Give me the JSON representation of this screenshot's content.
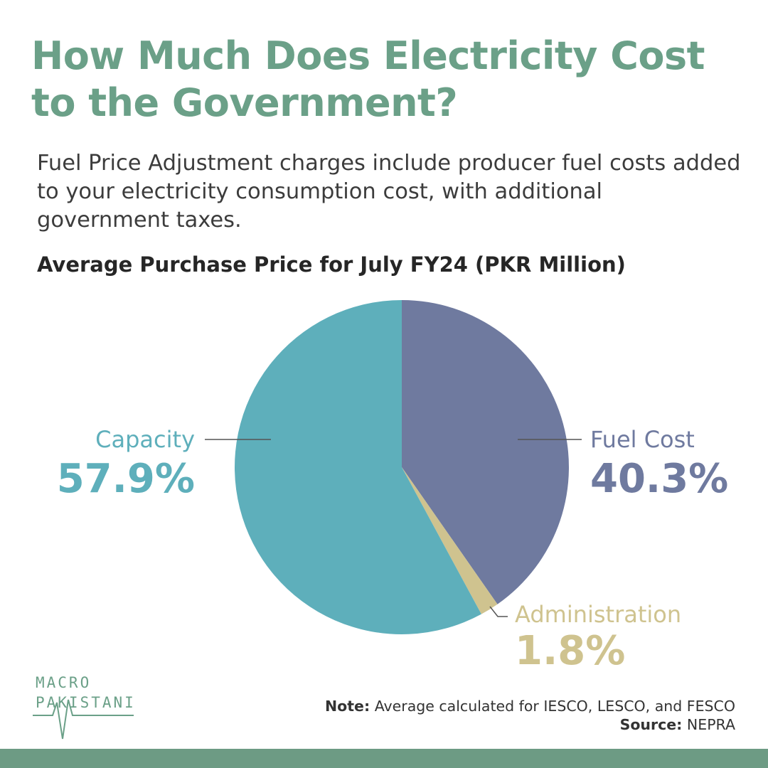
{
  "header": {
    "title": "How Much Does Electricity Cost to the Government?",
    "subtitle": "Fuel Price Adjustment charges include producer fuel costs added to your electricity consumption cost, with additional government taxes."
  },
  "chart_data": {
    "type": "pie",
    "title": "Average Purchase Price for July FY24 (PKR Million)",
    "slices": [
      {
        "label": "Fuel Cost",
        "value": 40.3,
        "display": "40.3%",
        "color": "#6f7a9f"
      },
      {
        "label": "Administration",
        "value": 1.8,
        "display": "1.8%",
        "color": "#cfc38f"
      },
      {
        "label": "Capacity",
        "value": 57.9,
        "display": "57.9%",
        "color": "#5eafbb"
      }
    ],
    "start_angle": "12 o'clock",
    "direction": "clockwise",
    "legend": "none (direct labels)"
  },
  "footer": {
    "note_label": "Note:",
    "note_text": "Average calculated for IESCO, LESCO, and FESCO",
    "source_label": "Source:",
    "source_text": "NEPRA"
  },
  "logo": {
    "line1": "MACRO",
    "line2": "PAKISTANI"
  },
  "colors": {
    "title": "#6ba088",
    "brand_bar": "#6d9b84"
  }
}
